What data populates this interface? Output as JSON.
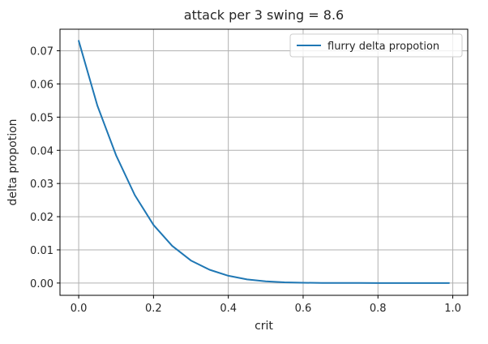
{
  "chart_data": {
    "type": "line",
    "title": "attack per 3 swing = 8.6",
    "xlabel": "crit",
    "ylabel": "delta propotion",
    "xlim": [
      -0.05,
      1.04
    ],
    "ylim": [
      -0.0037,
      0.0765
    ],
    "xticks": [
      0.0,
      0.2,
      0.4,
      0.6,
      0.8,
      1.0
    ],
    "xtick_labels": [
      "0.0",
      "0.2",
      "0.4",
      "0.6",
      "0.8",
      "1.0"
    ],
    "yticks": [
      0.0,
      0.01,
      0.02,
      0.03,
      0.04,
      0.05,
      0.06,
      0.07
    ],
    "ytick_labels": [
      "0.00",
      "0.01",
      "0.02",
      "0.03",
      "0.04",
      "0.05",
      "0.06",
      "0.07"
    ],
    "grid": true,
    "legend_position": "upper right",
    "series": [
      {
        "name": "flurry delta propotion",
        "color": "#1f77b4",
        "x": [
          0.0,
          0.05,
          0.1,
          0.15,
          0.2,
          0.25,
          0.3,
          0.35,
          0.4,
          0.45,
          0.5,
          0.55,
          0.6,
          0.65,
          0.7,
          0.75,
          0.8,
          0.85,
          0.9,
          0.95,
          0.99
        ],
        "y": [
          0.073,
          0.0535,
          0.0385,
          0.0265,
          0.0175,
          0.0112,
          0.0068,
          0.004,
          0.0022,
          0.0011,
          0.0005,
          0.0002,
          0.0001,
          4e-05,
          2e-05,
          1e-05,
          0.0,
          0.0,
          0.0,
          0.0,
          0.0
        ]
      }
    ]
  }
}
